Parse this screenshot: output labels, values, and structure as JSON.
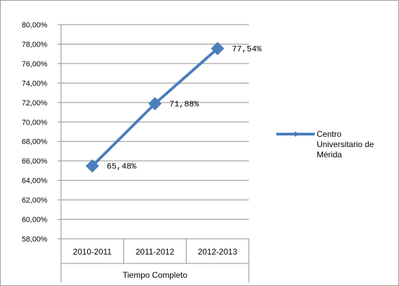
{
  "chart_data": {
    "type": "line",
    "title": "",
    "xlabel": "",
    "ylabel": "",
    "categories": [
      "2010-2011",
      "2011-2012",
      "2012-2013"
    ],
    "category_group": "Tiempo Completo",
    "series": [
      {
        "name": [
          "Centro",
          "Universitario de",
          "Mérida"
        ],
        "values": [
          65.48,
          71.88,
          77.54
        ],
        "data_labels": [
          "65,48%",
          "71,88%",
          "77,54%"
        ],
        "color": "#4a7ebb"
      }
    ],
    "ylim": [
      58,
      80
    ],
    "ytick_step": 2,
    "ytick_labels": [
      "58,00%",
      "60,00%",
      "62,00%",
      "64,00%",
      "66,00%",
      "68,00%",
      "70,00%",
      "72,00%",
      "74,00%",
      "76,00%",
      "78,00%",
      "80,00%"
    ],
    "grid": true,
    "legend": "right",
    "marker": "diamond"
  }
}
